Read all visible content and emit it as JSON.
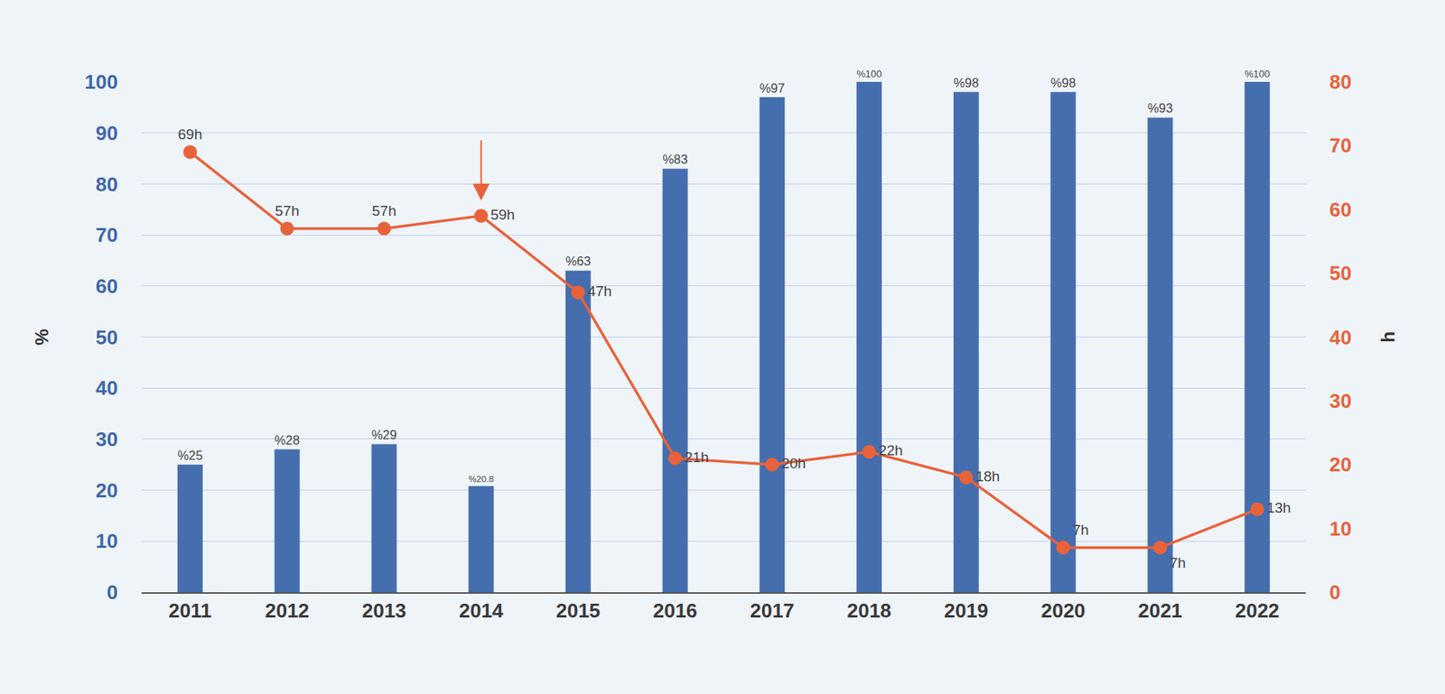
{
  "chart_data": {
    "type": "bar",
    "y_label": "%",
    "y2_label": "h",
    "categories": [
      "2011",
      "2012",
      "2013",
      "2014",
      "2015",
      "2016",
      "2017",
      "2018",
      "2019",
      "2020",
      "2021",
      "2022"
    ],
    "series": [
      {
        "type": "bar",
        "color": "#456eae",
        "values": [
          25,
          28,
          29,
          20.8,
          63,
          83,
          97,
          100,
          98,
          98,
          93,
          100
        ],
        "value_labels": [
          "%25",
          "%28",
          "%29",
          "%20.8",
          "%63",
          "%83",
          "%97",
          "%100",
          "%98",
          "%98",
          "%93",
          "%100"
        ]
      },
      {
        "type": "line",
        "axis": "y2",
        "color": "#e8623a",
        "marker": "circle",
        "values": [
          69,
          57,
          57,
          59,
          47,
          21,
          20,
          22,
          18,
          7,
          7,
          13
        ],
        "value_labels": [
          "69h",
          "57h",
          "57h",
          "59h",
          "47h",
          "21h",
          "20h",
          "22h",
          "18h",
          "7h",
          "7h",
          "13h"
        ]
      }
    ],
    "ylim": [
      0,
      100
    ],
    "yticks": [
      0,
      10,
      20,
      30,
      40,
      50,
      60,
      70,
      80,
      90,
      100
    ],
    "y2lim": [
      0,
      80
    ],
    "y2ticks": [
      0,
      10,
      20,
      30,
      40,
      50,
      60,
      70,
      80
    ],
    "grid": true,
    "data_labels": true
  }
}
